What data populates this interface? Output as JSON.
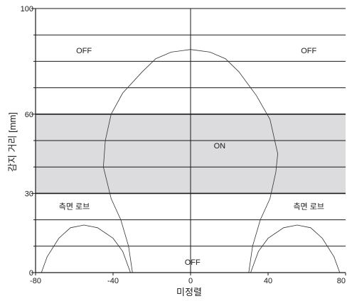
{
  "chart_data": {
    "type": "line",
    "title": "",
    "xlabel": "미정렬",
    "ylabel": "감지 거리 [mm]",
    "xlim": [
      -80,
      80
    ],
    "ylim": [
      0,
      100
    ],
    "x_ticks": [
      -80,
      -40,
      0,
      40,
      80
    ],
    "x_tick_labels": [
      "-80",
      "-40",
      "0",
      "40",
      "80"
    ],
    "y_ticks": [
      0,
      30,
      60,
      100
    ],
    "y_tick_labels": [
      "0",
      "30",
      "60",
      "100"
    ],
    "grid": {
      "horizontal_lines": [
        10,
        20,
        30,
        40,
        50,
        60,
        70,
        80,
        90,
        100
      ],
      "bold_lines": [
        30,
        60
      ],
      "vertical_lines": [
        0
      ]
    },
    "band": {
      "y0": 30,
      "y1": 60,
      "color": "#dcdcde",
      "label": "ON"
    },
    "annotations": [
      {
        "text": "OFF",
        "x": -55,
        "y": 83
      },
      {
        "text": "OFF",
        "x": 61,
        "y": 83
      },
      {
        "text": "ON",
        "x": 15,
        "y": 47
      },
      {
        "text": "측면 로브",
        "x": -60,
        "y": 24
      },
      {
        "text": "측면 로브",
        "x": 61,
        "y": 24
      },
      {
        "text": "OFF",
        "x": 1,
        "y": 3
      }
    ],
    "series": [
      {
        "points": [
          [
            -30,
            0
          ],
          [
            -32,
            10
          ],
          [
            -36,
            20
          ],
          [
            -41,
            28
          ],
          [
            -45,
            40
          ],
          [
            -44,
            50
          ],
          [
            -41,
            60
          ],
          [
            -35,
            68
          ],
          [
            -25,
            76
          ],
          [
            -18,
            81
          ],
          [
            -10,
            83.5
          ],
          [
            0,
            84.5
          ],
          [
            10,
            83.5
          ],
          [
            18,
            81
          ],
          [
            25,
            76
          ],
          [
            34,
            67
          ],
          [
            41,
            58
          ],
          [
            45,
            45
          ],
          [
            44,
            38
          ],
          [
            41,
            28
          ],
          [
            36,
            20
          ],
          [
            32,
            10
          ],
          [
            30,
            0
          ]
        ]
      },
      {
        "points": [
          [
            -77,
            0
          ],
          [
            -74,
            6
          ],
          [
            -68,
            13
          ],
          [
            -62,
            17
          ],
          [
            -55,
            18
          ],
          [
            -48,
            17
          ],
          [
            -40,
            13
          ],
          [
            -35,
            8
          ],
          [
            -31,
            0
          ]
        ]
      },
      {
        "points": [
          [
            31,
            0
          ],
          [
            35,
            8
          ],
          [
            40,
            13
          ],
          [
            48,
            17
          ],
          [
            55,
            18
          ],
          [
            62,
            17
          ],
          [
            68,
            13
          ],
          [
            74,
            6
          ],
          [
            77,
            0
          ]
        ]
      }
    ]
  }
}
